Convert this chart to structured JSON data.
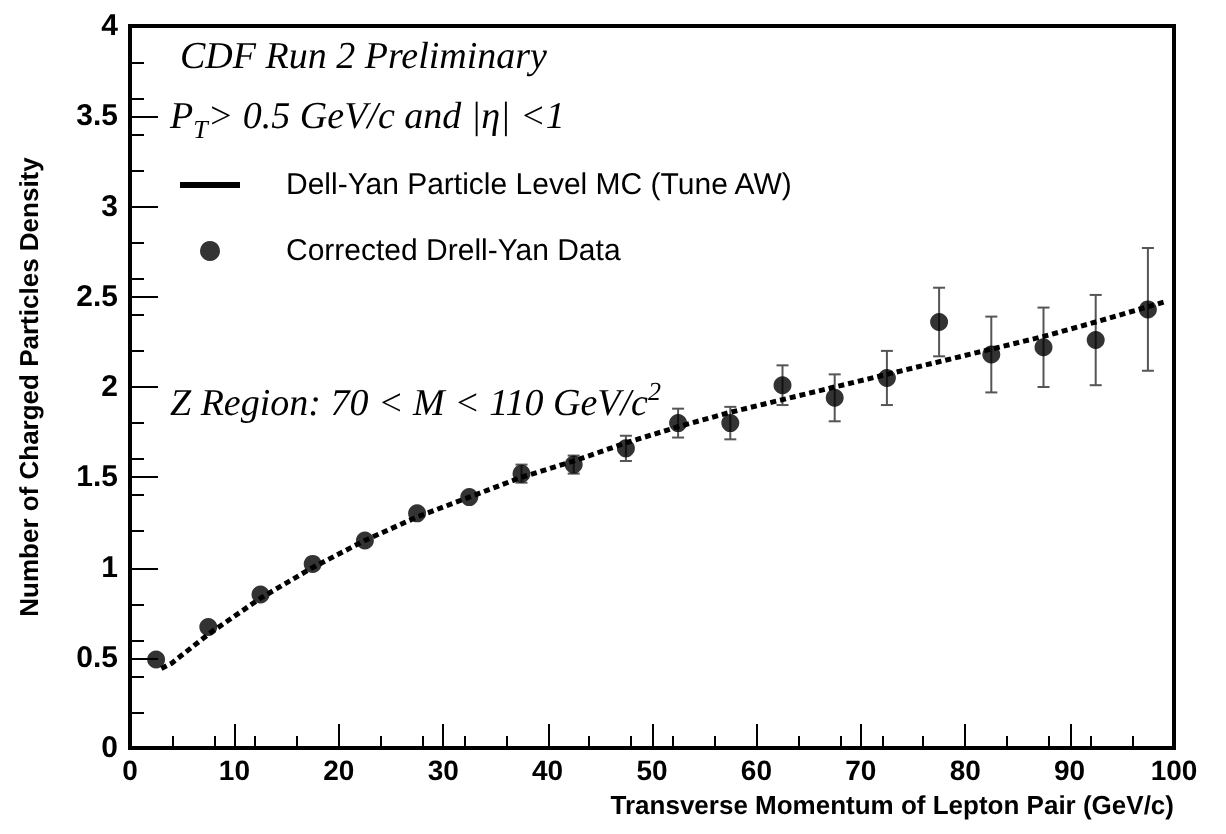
{
  "chart_data": {
    "type": "scatter",
    "xlabel": "Transverse Momentum of Lepton Pair (GeV/c)",
    "ylabel": "Number of Charged Particles Density",
    "annotations": [
      "CDF Run 2 Preliminary",
      "P$_{T}$> 0.5  GeV/c and |η| <1",
      "Z Region: 70 < M < 110 GeV/c$^{2}$"
    ],
    "xlim": [
      0,
      100
    ],
    "xticks": [
      0,
      10,
      20,
      30,
      40,
      50,
      60,
      70,
      80,
      90,
      100
    ],
    "ylim": [
      0,
      4
    ],
    "yticks": [
      0,
      0.5,
      1,
      1.5,
      2,
      2.5,
      3,
      3.5,
      4
    ],
    "grid": false,
    "legend": "top left",
    "series": [
      {
        "type": "line",
        "name": "Dell-Yan Particle Level MC (Tune AW)",
        "color": "#000000",
        "line_style": "dashed",
        "marker": "none",
        "x": [
          3,
          4,
          7.5,
          12.5,
          17.5,
          22.5,
          27.5,
          32.5,
          37.5,
          42.5,
          47.5,
          52.5,
          57.5,
          62.5,
          67.5,
          72.5,
          77.5,
          82.5,
          87.5,
          92.5,
          99
        ],
        "values": [
          0.44,
          0.47,
          0.63,
          0.83,
          1.0,
          1.15,
          1.28,
          1.39,
          1.5,
          1.59,
          1.69,
          1.78,
          1.86,
          1.93,
          2.0,
          2.07,
          2.14,
          2.21,
          2.28,
          2.36,
          2.47
        ]
      },
      {
        "type": "scatter",
        "name": "Corrected Drell-Yan Data",
        "color": "#000000",
        "marker": "circle",
        "x": [
          2.5,
          7.5,
          12.5,
          17.5,
          22.5,
          27.5,
          32.5,
          37.5,
          42.5,
          47.5,
          52.5,
          57.5,
          62.5,
          67.5,
          72.5,
          77.5,
          82.5,
          87.5,
          92.5,
          97.5
        ],
        "values": [
          0.49,
          0.67,
          0.85,
          1.02,
          1.15,
          1.3,
          1.39,
          1.52,
          1.57,
          1.66,
          1.8,
          1.8,
          2.01,
          1.94,
          2.05,
          2.36,
          2.18,
          2.22,
          2.26,
          2.43
        ],
        "errors": [
          null,
          null,
          null,
          null,
          null,
          null,
          null,
          0.05,
          0.05,
          0.07,
          0.08,
          0.09,
          0.11,
          0.13,
          0.15,
          0.19,
          0.21,
          0.22,
          0.25,
          0.34
        ]
      }
    ]
  }
}
